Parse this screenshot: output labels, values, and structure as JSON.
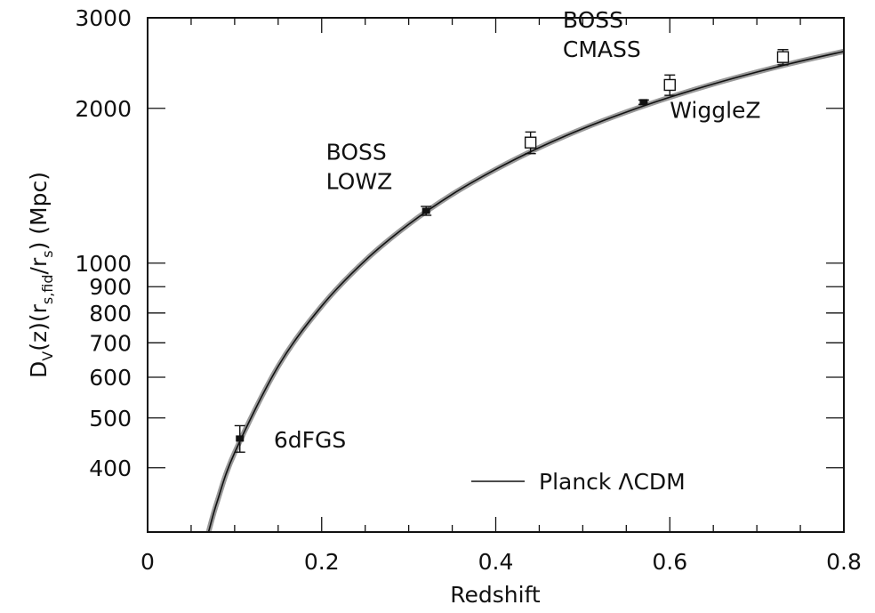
{
  "chart_data": {
    "type": "scatter",
    "xlabel": "Redshift",
    "ylabel_parts": {
      "d": "D",
      "v": "V",
      "z": "(z)(r",
      "sfid": "s,fid",
      "slash": "/r",
      "s": "s",
      "mpc": ")  (Mpc)"
    },
    "xlim": [
      0,
      0.8
    ],
    "ylim": [
      300,
      3000
    ],
    "y_scale": "log",
    "x_ticks_major": [
      0,
      0.2,
      0.4,
      0.6,
      0.8
    ],
    "x_tick_labels": [
      "0",
      "0.2",
      "0.4",
      "0.6",
      "0.8"
    ],
    "x_ticks_minor": [
      0.05,
      0.1,
      0.15,
      0.25,
      0.3,
      0.35,
      0.45,
      0.5,
      0.55,
      0.65,
      0.7,
      0.75
    ],
    "y_ticks_major": [
      400,
      500,
      600,
      700,
      800,
      900,
      1000,
      2000,
      3000
    ],
    "y_tick_labels": [
      "400",
      "500",
      "600",
      "700",
      "800",
      "900",
      "1000",
      "2000",
      "3000"
    ],
    "points": [
      {
        "x": 0.106,
        "y": 456,
        "yerr": 27,
        "marker": "filled-square"
      },
      {
        "x": 0.32,
        "y": 1264,
        "yerr": 25,
        "marker": "filled-square"
      },
      {
        "x": 0.44,
        "y": 1716,
        "yerr": 83,
        "marker": "open-square"
      },
      {
        "x": 0.57,
        "y": 2056,
        "yerr": 20,
        "marker": "filled-square"
      },
      {
        "x": 0.6,
        "y": 2221,
        "yerr": 101,
        "marker": "open-square"
      },
      {
        "x": 0.73,
        "y": 2516,
        "yerr": 86,
        "marker": "open-square"
      }
    ],
    "model_curve": {
      "x": [
        0.07,
        0.08,
        0.1,
        0.15,
        0.2,
        0.25,
        0.3,
        0.35,
        0.4,
        0.45,
        0.5,
        0.55,
        0.6,
        0.65,
        0.7,
        0.75,
        0.8
      ],
      "y": [
        300,
        344,
        428,
        630,
        825,
        1012,
        1190,
        1361,
        1522,
        1678,
        1826,
        1967,
        2102,
        2231,
        2353,
        2470,
        2580
      ]
    },
    "annotations": [
      {
        "lines": [
          "6dFGS"
        ],
        "x": 0.145,
        "y": 438
      },
      {
        "lines": [
          "BOSS",
          "LOWZ"
        ],
        "x": 0.205,
        "y": 1590
      },
      {
        "lines": [
          "BOSS",
          "CMASS"
        ],
        "x": 0.477,
        "y": 2870
      },
      {
        "lines": [
          "WiggleZ"
        ],
        "x": 0.6,
        "y": 1915
      }
    ],
    "legend": {
      "entries": [
        {
          "label": "Planck ΛCDM",
          "style": "line"
        }
      ],
      "placement": "bottom-right"
    },
    "colors": {
      "line": "#111111",
      "band": "#9a9a9a",
      "axes": "#111111"
    }
  }
}
